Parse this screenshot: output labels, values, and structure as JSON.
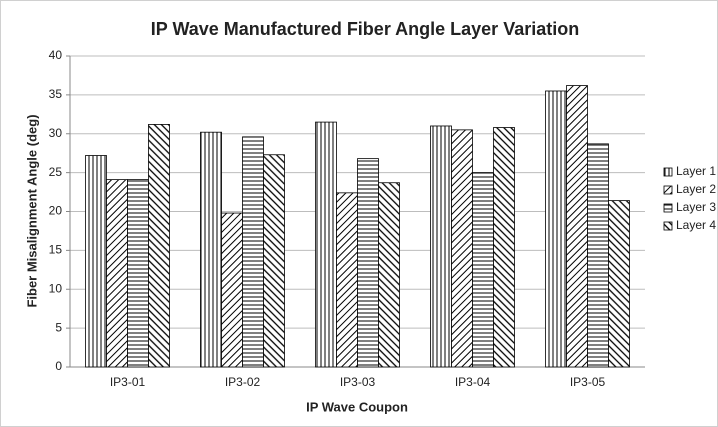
{
  "chart_data": {
    "type": "bar",
    "title": "IP Wave Manufactured Fiber Angle Layer Variation",
    "x_label": "IP Wave Coupon",
    "y_label": "Fiber Misalignment Angle (deg)",
    "categories": [
      "IP3-01",
      "IP3-02",
      "IP3-03",
      "IP3-04",
      "IP3-05"
    ],
    "series": [
      {
        "name": "Layer 1",
        "color": "#000000",
        "pattern": "vertical",
        "values": [
          27.2,
          30.2,
          31.5,
          31.0,
          35.5
        ]
      },
      {
        "name": "Layer 2",
        "color": "#000000",
        "pattern": "diagonal-down",
        "values": [
          24.1,
          19.8,
          22.4,
          30.5,
          36.2
        ]
      },
      {
        "name": "Layer 3",
        "color": "#000000",
        "pattern": "horizontal",
        "values": [
          24.1,
          29.6,
          26.8,
          25.0,
          28.7
        ]
      },
      {
        "name": "Layer 4",
        "color": "#000000",
        "pattern": "diagonal-up",
        "values": [
          31.2,
          27.3,
          23.7,
          30.8,
          21.4
        ]
      }
    ],
    "ylim": [
      0,
      40
    ],
    "yticks": [
      0,
      5,
      10,
      15,
      20,
      25,
      30,
      35,
      40
    ],
    "grid": true,
    "legend": "right"
  }
}
